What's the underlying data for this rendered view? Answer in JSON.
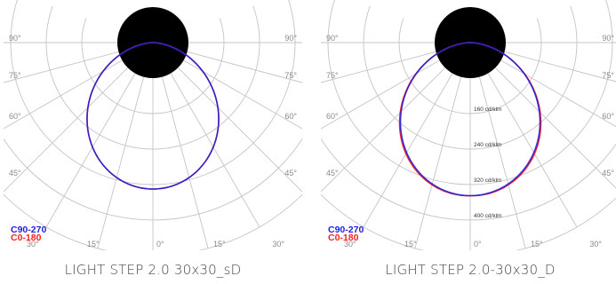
{
  "colors": {
    "c0_180": "#ff2020",
    "c90_270": "#2020e0",
    "grid": "#c4c4c4"
  },
  "panels": [
    {
      "caption": "LIGHT STEP 2.0 30x30_sD",
      "legend": {
        "c90_270": "C90-270",
        "c0_180": "C0-180"
      },
      "angle_labels": {
        "deg90": "90°",
        "deg75": "75°",
        "deg60": "60°",
        "deg45": "45°",
        "deg30": "30°",
        "deg15": "15°",
        "deg0": "0°"
      },
      "ring_labels": [],
      "peak_cd_klm": 330,
      "shape_exponent": 1.35,
      "c0_adjust": 1.0
    },
    {
      "caption": "LIGHT STEP 2.0-30x30_D",
      "legend": {
        "c90_270": "C90-270",
        "c0_180": "C0-180"
      },
      "angle_labels": {
        "deg90": "90°",
        "deg75": "75°",
        "deg60": "60°",
        "deg45": "45°",
        "deg30": "30°",
        "deg15": "15°",
        "deg0": "0°"
      },
      "ring_labels": [
        {
          "value": 160,
          "text": "160 cd/klm"
        },
        {
          "value": 240,
          "text": "240 cd/klm"
        },
        {
          "value": 320,
          "text": "320 cd/klm"
        },
        {
          "value": 400,
          "text": "400 cd/klm"
        }
      ],
      "peak_cd_klm": 345,
      "shape_exponent": 1.3,
      "c0_adjust": 1.012
    }
  ]
}
